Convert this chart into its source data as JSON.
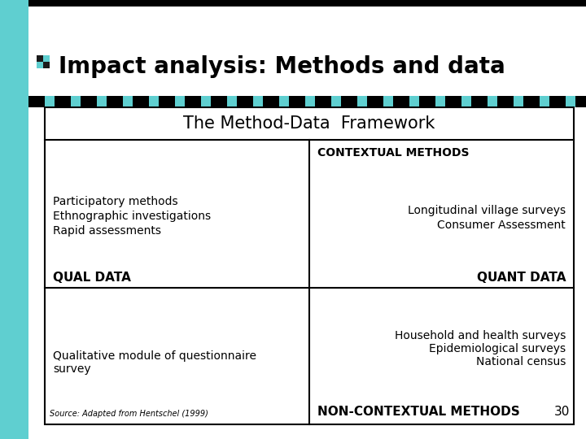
{
  "title": "Impact analysis: Methods and data",
  "table_header": "The Method-Data  Framework",
  "top_left_lines": [
    "Participatory methods",
    "Ethnographic investigations",
    "Rapid assessments"
  ],
  "top_right_header": "CONTEXTUAL METHODS",
  "top_right_lines": [
    "Longitudinal village surveys",
    "Consumer Assessment"
  ],
  "bottom_left_lines": [
    "Qualitative module of questionnaire",
    "survey"
  ],
  "bottom_right_lines": [
    "Household and health surveys",
    "Epidemiological surveys",
    "National census"
  ],
  "qual_data_label": "QUAL DATA",
  "quant_data_label": "QUANT DATA",
  "non_contextual_label": "NON-CONTEXTUAL METHODS",
  "page_num": "30",
  "source_text": "Source: Adapted from Hentschel (1999)",
  "bg_color": "#ffffff",
  "title_color": "#000000",
  "table_border_color": "#000000",
  "left_strip_color": "#5fcfd0",
  "deco_bar_teal": "#5fcfd0",
  "deco_bar_black": "#000000",
  "title_icon_dark": "#1a1a1a",
  "title_icon_teal": "#5fcfd0",
  "top_black_bar_color": "#000000",
  "title_fontsize": 20,
  "table_header_fontsize": 15,
  "cell_fontsize": 10,
  "label_fontsize": 11,
  "source_fontsize": 7
}
